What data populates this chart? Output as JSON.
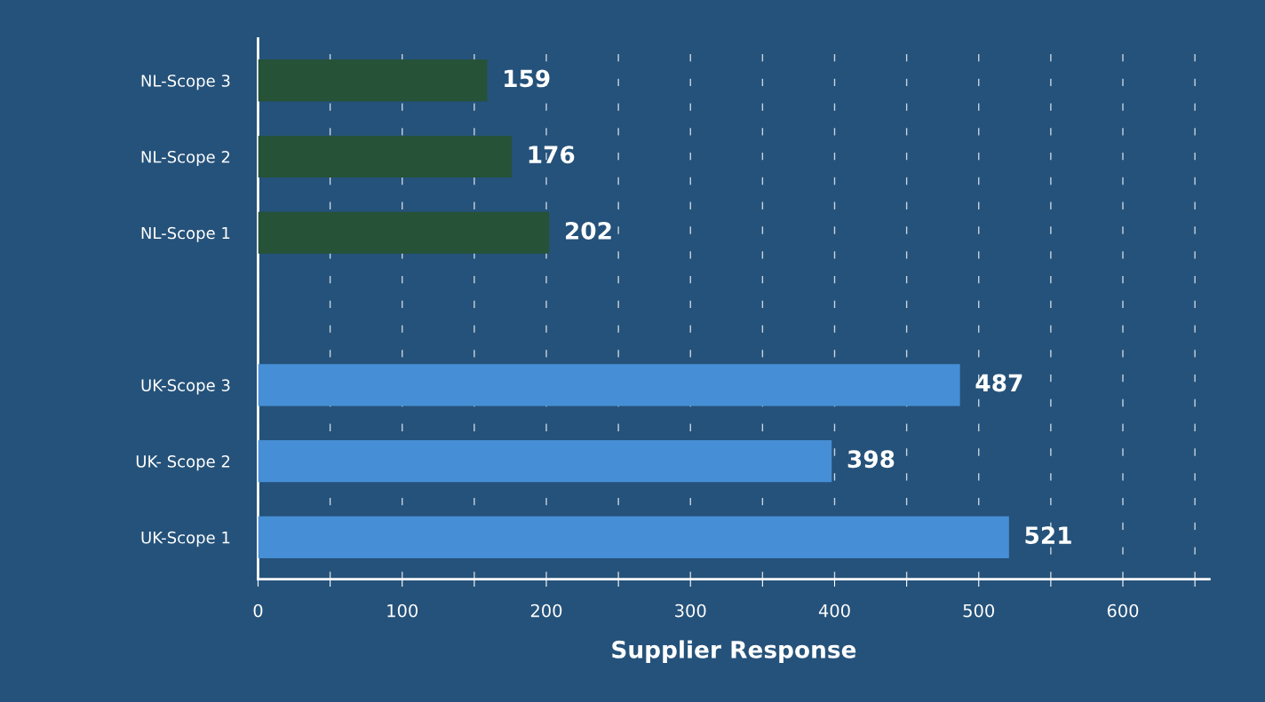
{
  "chart_data": {
    "type": "bar",
    "orientation": "horizontal",
    "xlabel": "Supplier Response",
    "categories": [
      "NL-Scope 3",
      "NL-Scope 2",
      "NL-Scope 1",
      null,
      "UK-Scope 3",
      "UK- Scope 2",
      "UK-Scope 1"
    ],
    "values": [
      159,
      176,
      202,
      null,
      487,
      398,
      521
    ],
    "colors": [
      "#265238",
      "#265238",
      "#265238",
      "#3f7fc8",
      "#468fd6",
      "#468fd6",
      "#468fd6"
    ],
    "xlim": [
      0,
      660
    ],
    "xticks": [
      0,
      {
        "value": 50,
        "label": null
      },
      100,
      {
        "value": 150,
        "label": null
      },
      200,
      {
        "value": 250,
        "label": null
      },
      300,
      {
        "value": 350,
        "label": null
      },
      400,
      {
        "value": 450,
        "label": null
      },
      500,
      {
        "value": 550,
        "label": null
      },
      600,
      {
        "value": 650,
        "label": null
      }
    ],
    "grid": "x",
    "data_labels": true
  }
}
